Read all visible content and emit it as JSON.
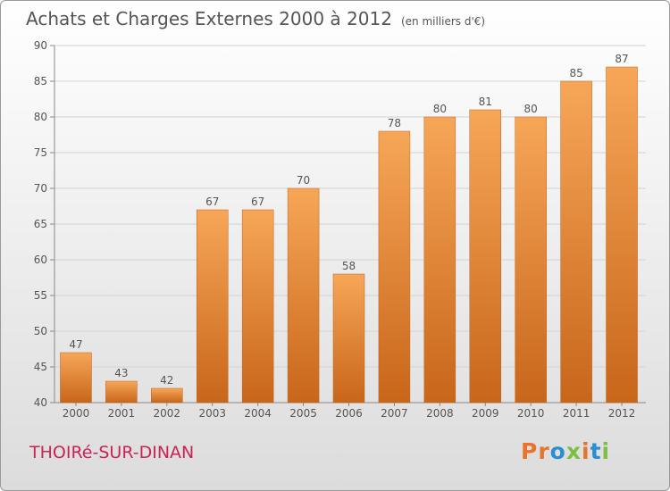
{
  "header": {
    "title": "Achats et Charges Externes 2000 à 2012",
    "unit": "(en milliers d'€)"
  },
  "footer": {
    "location": "THOIRé-SUR-DINAN",
    "brand": "Proxiti",
    "brand_colors": [
      "#e8732a",
      "#e8732a",
      "#2a8fd0",
      "#7ac142",
      "#e8732a",
      "#2a8fd0",
      "#7ac142"
    ]
  },
  "chart_data": {
    "type": "bar",
    "categories": [
      "2000",
      "2001",
      "2002",
      "2003",
      "2004",
      "2005",
      "2006",
      "2007",
      "2008",
      "2009",
      "2010",
      "2011",
      "2012"
    ],
    "values": [
      47,
      43,
      42,
      67,
      67,
      70,
      58,
      78,
      80,
      81,
      80,
      85,
      87
    ],
    "ylim": [
      40,
      90
    ],
    "yticks": [
      40,
      45,
      50,
      55,
      60,
      65,
      70,
      75,
      80,
      85,
      90
    ],
    "grid": true,
    "bar_color_top": "#f7a658",
    "bar_color_bottom": "#c8661a"
  }
}
